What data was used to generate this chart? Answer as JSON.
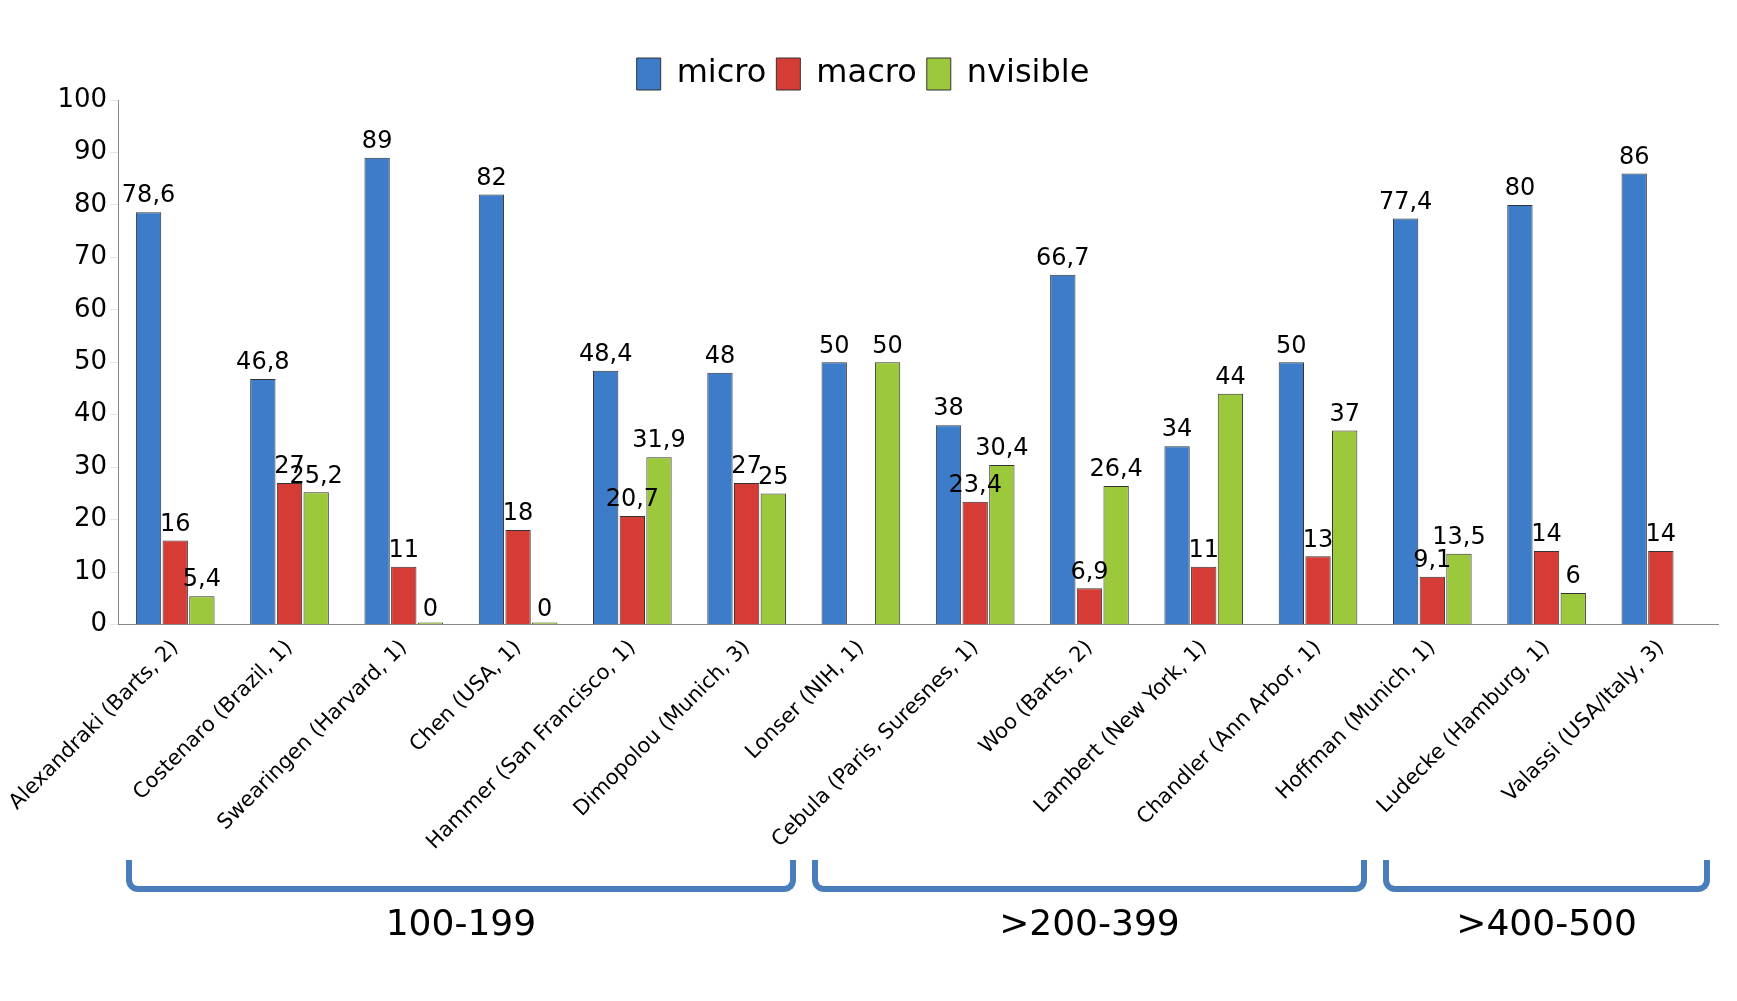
{
  "chart_data": {
    "type": "bar",
    "categories": [
      "Alexandraki (Barts, 2)",
      "Costenaro (Brazil, 1)",
      "Swearingen (Harvard, 1)",
      "Chen (USA, 1)",
      "Hammer (San Francisco, 1)",
      "Dimopolou (Munich, 3)",
      "Lonser (NIH, 1)",
      "Cebula (Paris, Suresnes, 1)",
      "Woo (Barts, 2)",
      "Lambert (New York, 1)",
      "Chandler (Ann Arbor, 1)",
      "Hoffman (Munich, 1)",
      "Ludecke (Hamburg, 1)",
      "Valassi (USA/Italy, 3)"
    ],
    "series": [
      {
        "name": "micro",
        "color": "#3d7cc9",
        "values": [
          78.6,
          46.8,
          89,
          82,
          48.4,
          48,
          50,
          38,
          66.7,
          34,
          50,
          77.4,
          80,
          86
        ],
        "value_labels": [
          "78,6",
          "46,8",
          "89",
          "82",
          "48,4",
          "48",
          "50",
          "38",
          "66,7",
          "34",
          "50",
          "77,4",
          "80",
          "86"
        ]
      },
      {
        "name": "macro",
        "color": "#d63c36",
        "values": [
          16,
          27,
          11,
          18,
          20.7,
          27,
          null,
          23.4,
          6.9,
          11,
          13,
          9.1,
          14,
          14
        ],
        "value_labels": [
          "16",
          "27",
          "11",
          "18",
          "20,7",
          "27",
          null,
          "23,4",
          "6,9",
          "11",
          "13",
          "9,1",
          "14",
          "14"
        ]
      },
      {
        "name": "nvisible",
        "color": "#9cc83c",
        "values": [
          5.4,
          25.2,
          0,
          0,
          31.9,
          25,
          50,
          30.4,
          26.4,
          44,
          37,
          13.5,
          6,
          null
        ],
        "value_labels": [
          "5,4",
          "25,2",
          "0",
          "0",
          "31,9",
          "25",
          "50",
          "30,4",
          "26,4",
          "44",
          "37",
          "13,5",
          "6",
          null
        ]
      }
    ],
    "ylim": [
      0,
      100
    ],
    "yticks": [
      0,
      10,
      20,
      30,
      40,
      50,
      60,
      70,
      80,
      90,
      100
    ],
    "grid": false,
    "legend": "top",
    "annotations": [
      "100-199",
      ">200-399",
      ">400-500"
    ]
  }
}
